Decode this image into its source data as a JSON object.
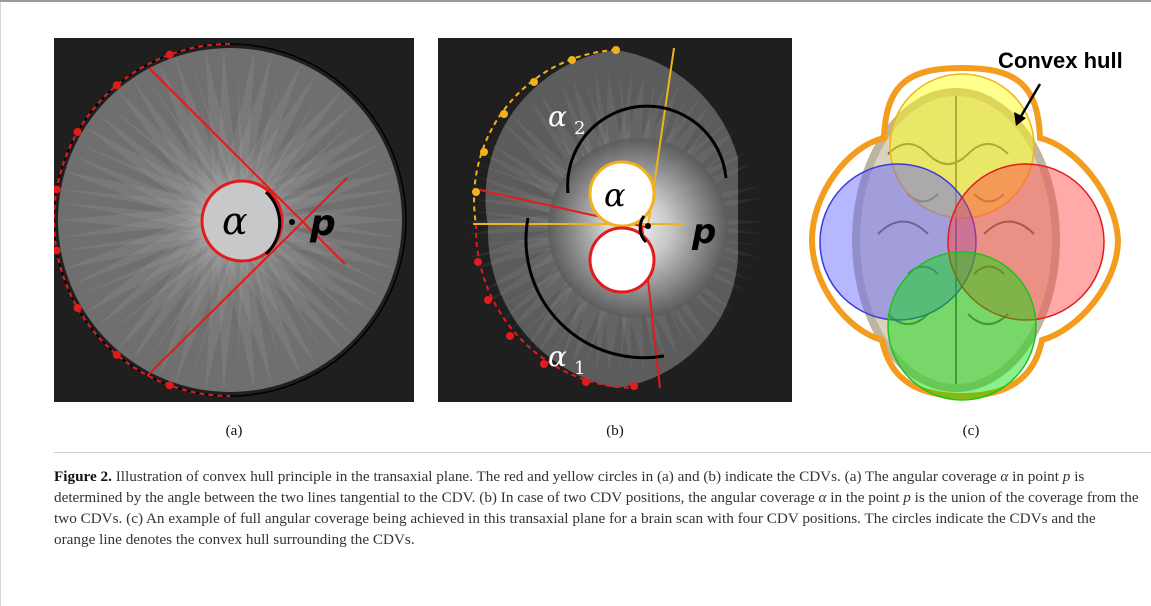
{
  "figure": {
    "panel_a": {
      "angle_label": "α",
      "point_label": "p",
      "sublabel": "(a)"
    },
    "panel_b": {
      "angle_label": "α",
      "alpha1_label": "α",
      "alpha1_sub": "1",
      "alpha2_label": "α",
      "alpha2_sub": "2",
      "point_label": "p",
      "sublabel": "(b)"
    },
    "panel_c": {
      "callout": "Convex hull",
      "sublabel": "(c)"
    },
    "colors": {
      "red": "#e21b1b",
      "yellow": "#f2b21c",
      "orange": "#f39c1d",
      "blue": "#3b3bd6",
      "green": "#1ec21e",
      "background_dark": "#1f1f1f"
    },
    "icons": [
      "arrow-icon"
    ]
  },
  "caption": {
    "figure_number": "Figure 2.",
    "parts": [
      "Illustration of convex hull principle in the transaxial plane. The red and yellow circles in (a) and (b) indicate the CDVs. (a) The angular coverage ",
      "α",
      " in point ",
      "p",
      " is determined by the angle between the two lines tangential to the CDV. (b) In case of two CDV positions, the angular coverage ",
      "α",
      " in the point ",
      "p",
      " is the union of the coverage from the two CDVs. (c) An example of full angular coverage being achieved in this transaxial plane for a brain scan with four CDV positions. The circles indicate the CDVs and the orange line denotes the convex hull surrounding the CDVs."
    ]
  }
}
